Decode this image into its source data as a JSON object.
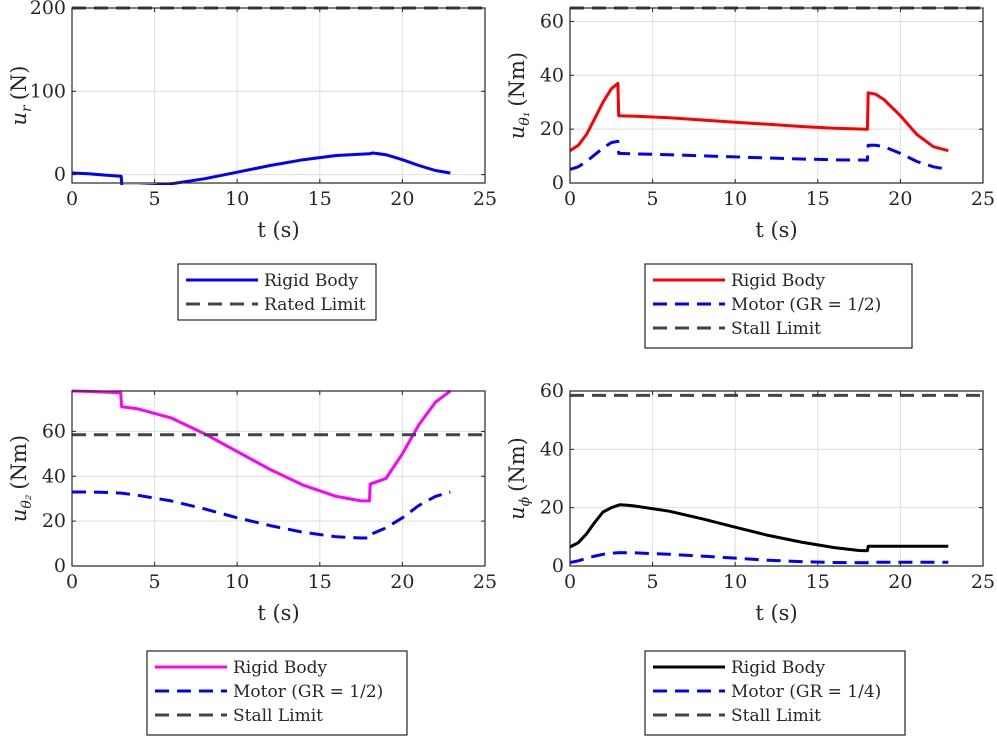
{
  "chart_data": [
    {
      "type": "line",
      "xlabel": "t (s)",
      "ylabel": {
        "sym": "u",
        "sub": "r",
        "unit": "(N)"
      },
      "xlim": [
        0,
        25
      ],
      "ylim": [
        -10,
        200
      ],
      "xticks": [
        0,
        5,
        10,
        15,
        20,
        25
      ],
      "yticks": [
        0,
        100,
        200
      ],
      "grid": true,
      "legend_position": "below",
      "series": [
        {
          "name": "Rigid Body",
          "color": "#0000ff",
          "style": "solid",
          "x": [
            0,
            1,
            2,
            2.98,
            3.02,
            4,
            5,
            6,
            8,
            10,
            12,
            14,
            16,
            18,
            18.2,
            19,
            20,
            21,
            22,
            22.9
          ],
          "y": [
            2,
            1,
            -0.5,
            -2,
            -14,
            -14,
            -13,
            -11,
            -5,
            3,
            11,
            18,
            23,
            25,
            26,
            24,
            18,
            11,
            5,
            2
          ]
        },
        {
          "name": "Rated Limit",
          "color": "#444444",
          "style": "dashed",
          "x": [
            0,
            25
          ],
          "y": [
            200,
            200
          ]
        }
      ]
    },
    {
      "type": "line",
      "xlabel": "t (s)",
      "ylabel": {
        "sym": "u",
        "sub": "θ₁",
        "unit": "(Nm)"
      },
      "xlim": [
        0,
        25
      ],
      "ylim": [
        0,
        65
      ],
      "xticks": [
        0,
        5,
        10,
        15,
        20,
        25
      ],
      "yticks": [
        0,
        20,
        40,
        60
      ],
      "grid": true,
      "legend_position": "below",
      "series": [
        {
          "name": "Rigid Body",
          "color": "#ff0000",
          "style": "solid",
          "x": [
            0,
            0.5,
            1,
            1.5,
            2,
            2.5,
            2.9,
            2.95,
            4,
            6,
            8,
            10,
            12,
            14,
            16,
            18,
            18.05,
            18.5,
            19,
            20,
            21,
            22,
            22.9
          ],
          "y": [
            12,
            14,
            18,
            24,
            30,
            35,
            37,
            25,
            24.8,
            24.2,
            23.4,
            22.6,
            21.8,
            21,
            20.3,
            20,
            33.5,
            33,
            31,
            25,
            18,
            13.5,
            12
          ]
        },
        {
          "name": "Motor (GR = 1/2)",
          "color": "#0000ff",
          "style": "dashed",
          "x": [
            0,
            0.5,
            1,
            1.5,
            2,
            2.5,
            2.9,
            2.95,
            4,
            6,
            8,
            10,
            12,
            14,
            16,
            18,
            18.05,
            18.5,
            19,
            20,
            21,
            22,
            22.9
          ],
          "y": [
            5,
            6,
            8,
            10.5,
            13,
            15,
            15.5,
            11,
            10.8,
            10.5,
            10.1,
            9.7,
            9.3,
            8.9,
            8.6,
            8.5,
            14,
            14,
            13.5,
            11,
            8,
            6,
            5
          ]
        },
        {
          "name": "Stall Limit",
          "color": "#444444",
          "style": "dashed",
          "x": [
            0,
            25
          ],
          "y": [
            65,
            65
          ]
        }
      ]
    },
    {
      "type": "line",
      "xlabel": "t (s)",
      "ylabel": {
        "sym": "u",
        "sub": "θ₂",
        "unit": "(Nm)"
      },
      "xlim": [
        0,
        25
      ],
      "ylim": [
        0,
        78
      ],
      "xticks": [
        0,
        5,
        10,
        15,
        20,
        25
      ],
      "yticks": [
        0,
        20,
        40,
        60
      ],
      "grid": true,
      "legend_position": "below",
      "series": [
        {
          "name": "Rigid Body",
          "color": "#ff00ff",
          "style": "solid",
          "x": [
            0,
            1,
            2,
            2.95,
            3.0,
            4,
            6,
            8,
            10,
            12,
            14,
            16,
            17.5,
            18,
            18.05,
            19,
            20,
            21,
            22,
            22.9
          ],
          "y": [
            78,
            77.8,
            77.5,
            77.2,
            71,
            70,
            66,
            59,
            51,
            43,
            36,
            31,
            29,
            29,
            36.5,
            39,
            50,
            63,
            73,
            78
          ]
        },
        {
          "name": "Motor (GR = 1/2)",
          "color": "#0000ff",
          "style": "dashed",
          "x": [
            0,
            1,
            2,
            3,
            4,
            6,
            8,
            10,
            12,
            14,
            16,
            17.5,
            18,
            18.05,
            19,
            20,
            21,
            22,
            22.9
          ],
          "y": [
            33,
            33,
            32.8,
            32.5,
            31.5,
            29,
            25.5,
            21.5,
            18,
            15,
            13,
            12.5,
            12.5,
            14,
            17,
            21.5,
            27,
            31,
            33
          ]
        },
        {
          "name": "Stall Limit",
          "color": "#444444",
          "style": "dashed",
          "x": [
            0,
            25
          ],
          "y": [
            58.5,
            58.5
          ]
        }
      ]
    },
    {
      "type": "line",
      "xlabel": "t (s)",
      "ylabel": {
        "sym": "u",
        "sub": "ϕ",
        "unit": "(Nm)"
      },
      "xlim": [
        0,
        25
      ],
      "ylim": [
        0,
        60
      ],
      "xticks": [
        0,
        5,
        10,
        15,
        20,
        25
      ],
      "yticks": [
        0,
        20,
        40,
        60
      ],
      "grid": true,
      "legend_position": "below",
      "series": [
        {
          "name": "Rigid Body",
          "color": "#000000",
          "style": "solid",
          "x": [
            0,
            0.5,
            1,
            1.5,
            2,
            2.5,
            3,
            3.5,
            4,
            6,
            8,
            10,
            12,
            14,
            16,
            17.5,
            18,
            18.05,
            19,
            20,
            21,
            22,
            22.9
          ],
          "y": [
            6.5,
            8,
            11,
            15,
            18.5,
            20,
            21,
            20.8,
            20.5,
            18.8,
            16.2,
            13.3,
            10.5,
            8.2,
            6.3,
            5.3,
            5.2,
            6.8,
            6.8,
            6.8,
            6.8,
            6.8,
            6.8
          ]
        },
        {
          "name": "Motor (GR = 1/4)",
          "color": "#0000ff",
          "style": "dashed",
          "x": [
            0,
            0.5,
            1,
            1.5,
            2,
            2.5,
            3,
            4,
            6,
            8,
            10,
            12,
            14,
            16,
            18,
            18.05,
            20,
            22,
            22.9
          ],
          "y": [
            1.2,
            1.8,
            2.6,
            3.4,
            4,
            4.4,
            4.6,
            4.5,
            4,
            3.4,
            2.7,
            2,
            1.5,
            1.2,
            1.1,
            1.3,
            1.3,
            1.3,
            1.3
          ]
        },
        {
          "name": "Stall Limit",
          "color": "#444444",
          "style": "dashed",
          "x": [
            0,
            25
          ],
          "y": [
            58.5,
            58.5
          ]
        }
      ]
    }
  ]
}
